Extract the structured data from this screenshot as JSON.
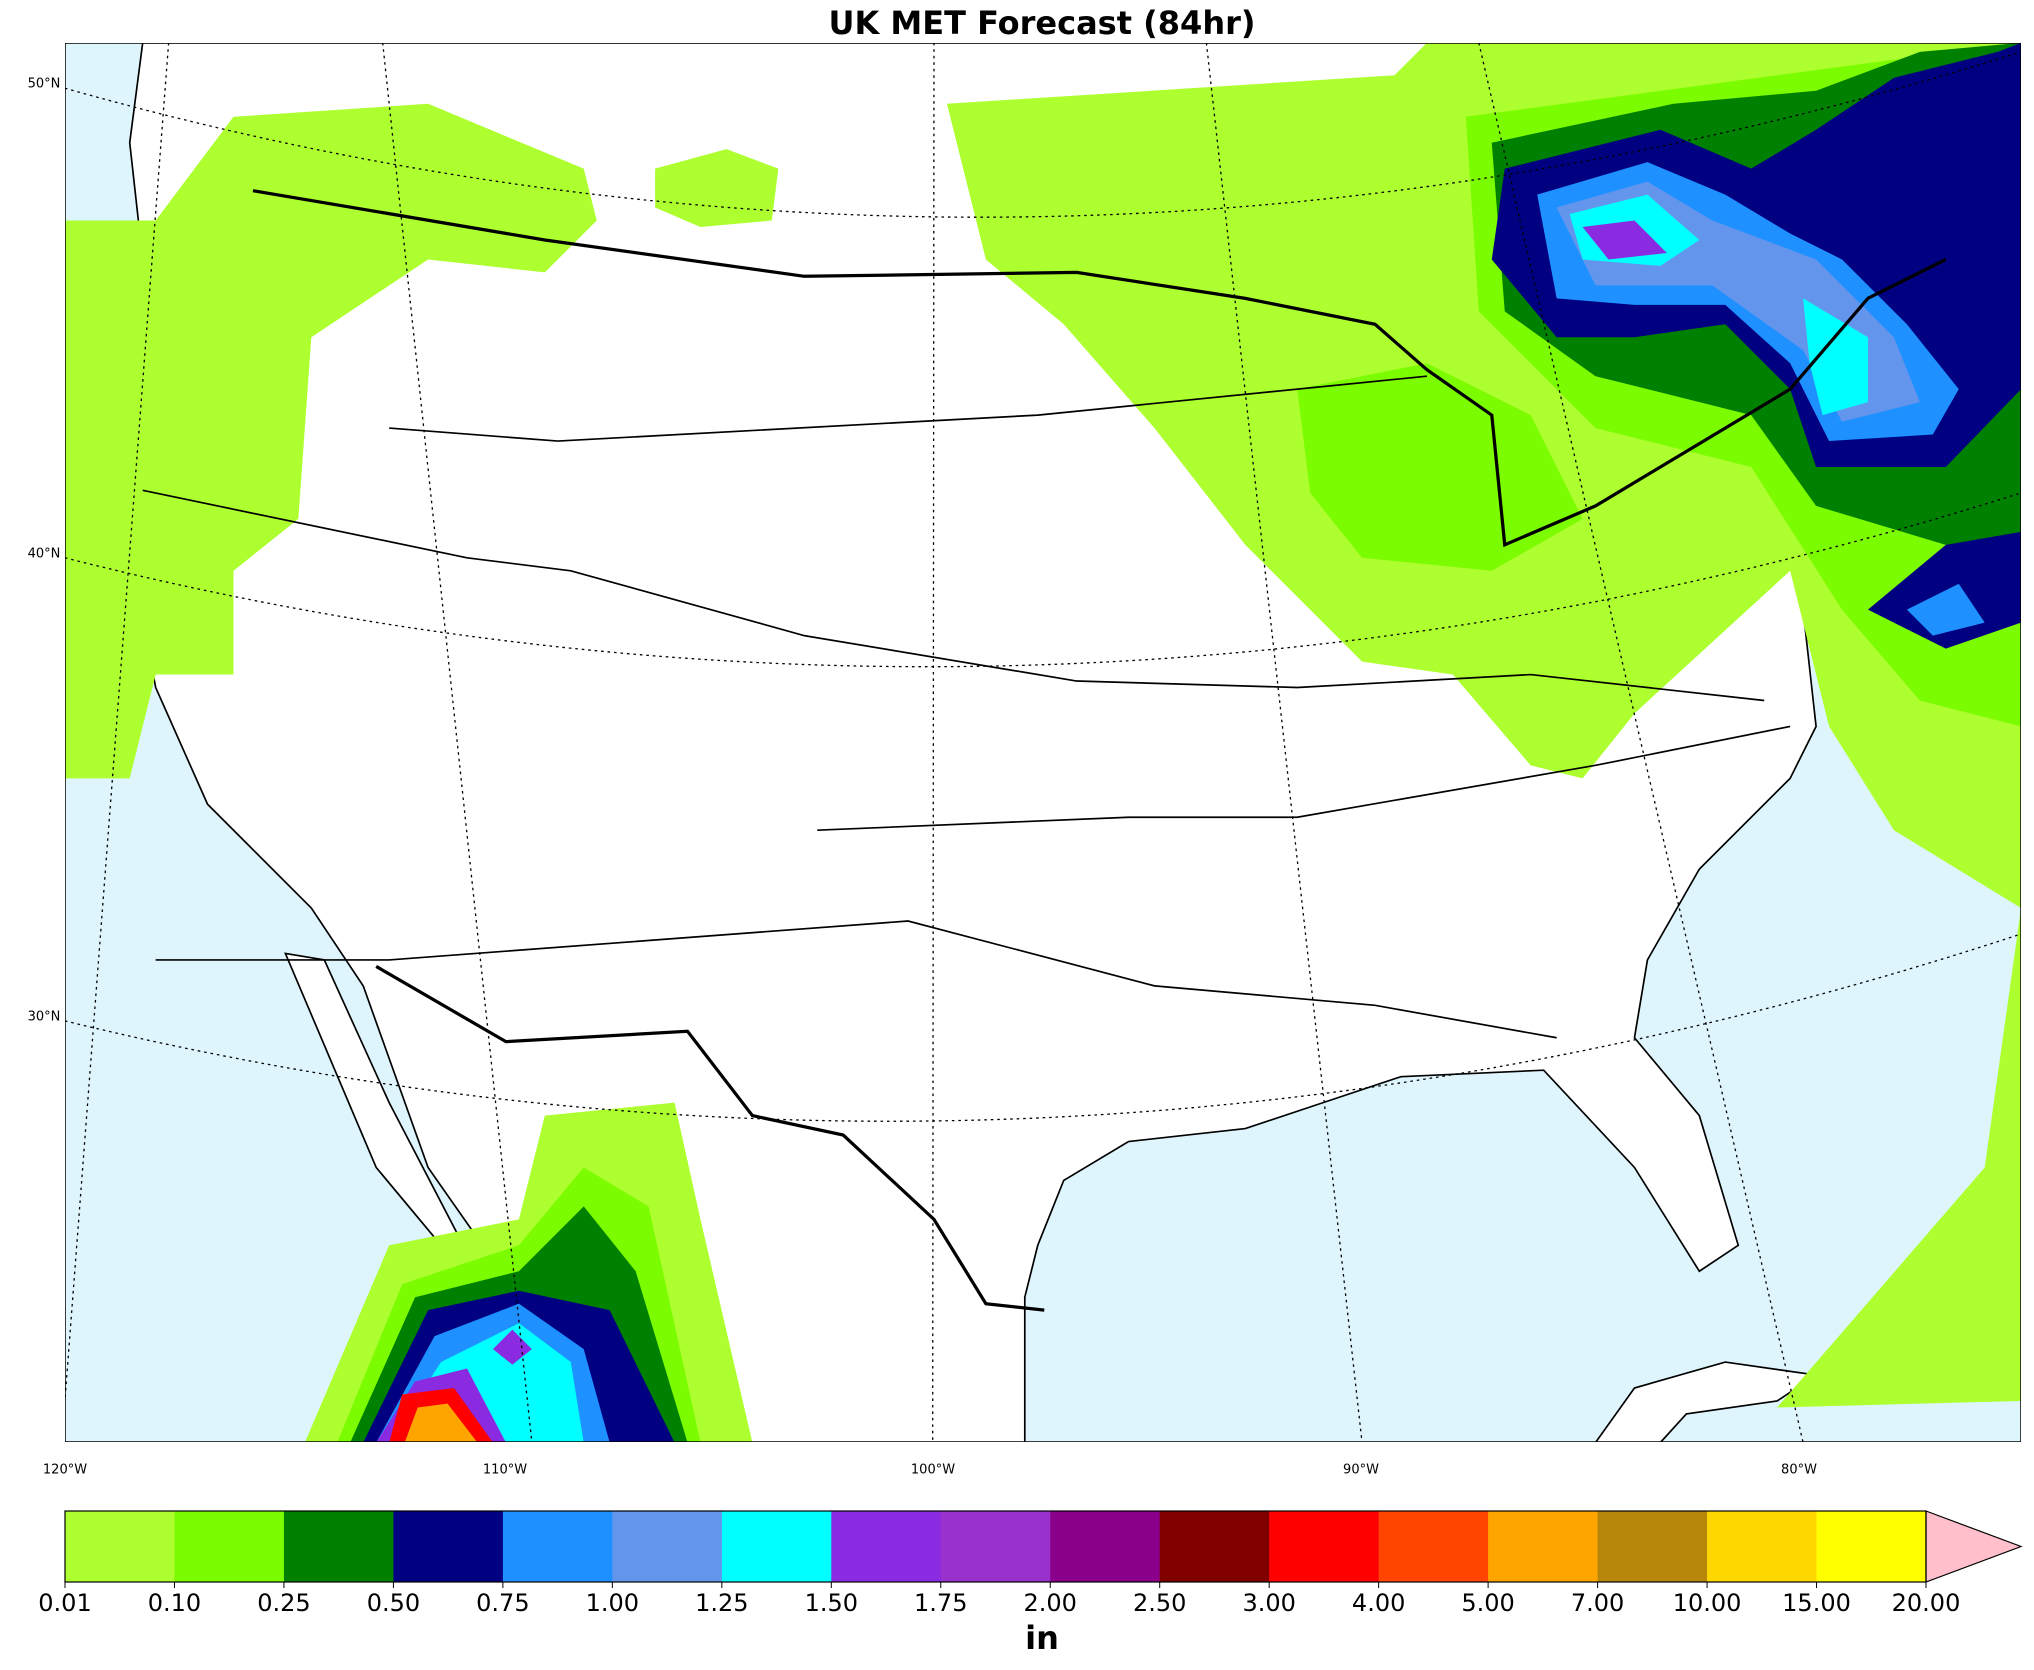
{
  "title": "UK MET Forecast (84hr)",
  "map": {
    "lat_labels": [
      "50°N",
      "40°N",
      "30°N"
    ],
    "lon_labels": [
      "120°W",
      "110°W",
      "100°W",
      "90°W",
      "80°W"
    ]
  },
  "colorbar": {
    "ticks": [
      "0.01",
      "0.10",
      "0.25",
      "0.50",
      "0.75",
      "1.00",
      "1.25",
      "1.50",
      "1.75",
      "2.00",
      "2.50",
      "3.00",
      "4.00",
      "5.00",
      "7.00",
      "10.00",
      "15.00",
      "20.00"
    ],
    "colors": [
      "#adff2f",
      "#7cfc00",
      "#008000",
      "#000080",
      "#1e90ff",
      "#6495ed",
      "#00ffff",
      "#8a2be2",
      "#9932cc",
      "#8b008b",
      "#800000",
      "#ff0000",
      "#ff4500",
      "#ffa500",
      "#b8860b",
      "#ffd700",
      "#ffff00"
    ],
    "extend_color": "#ffc0cb",
    "unit": "in"
  }
}
